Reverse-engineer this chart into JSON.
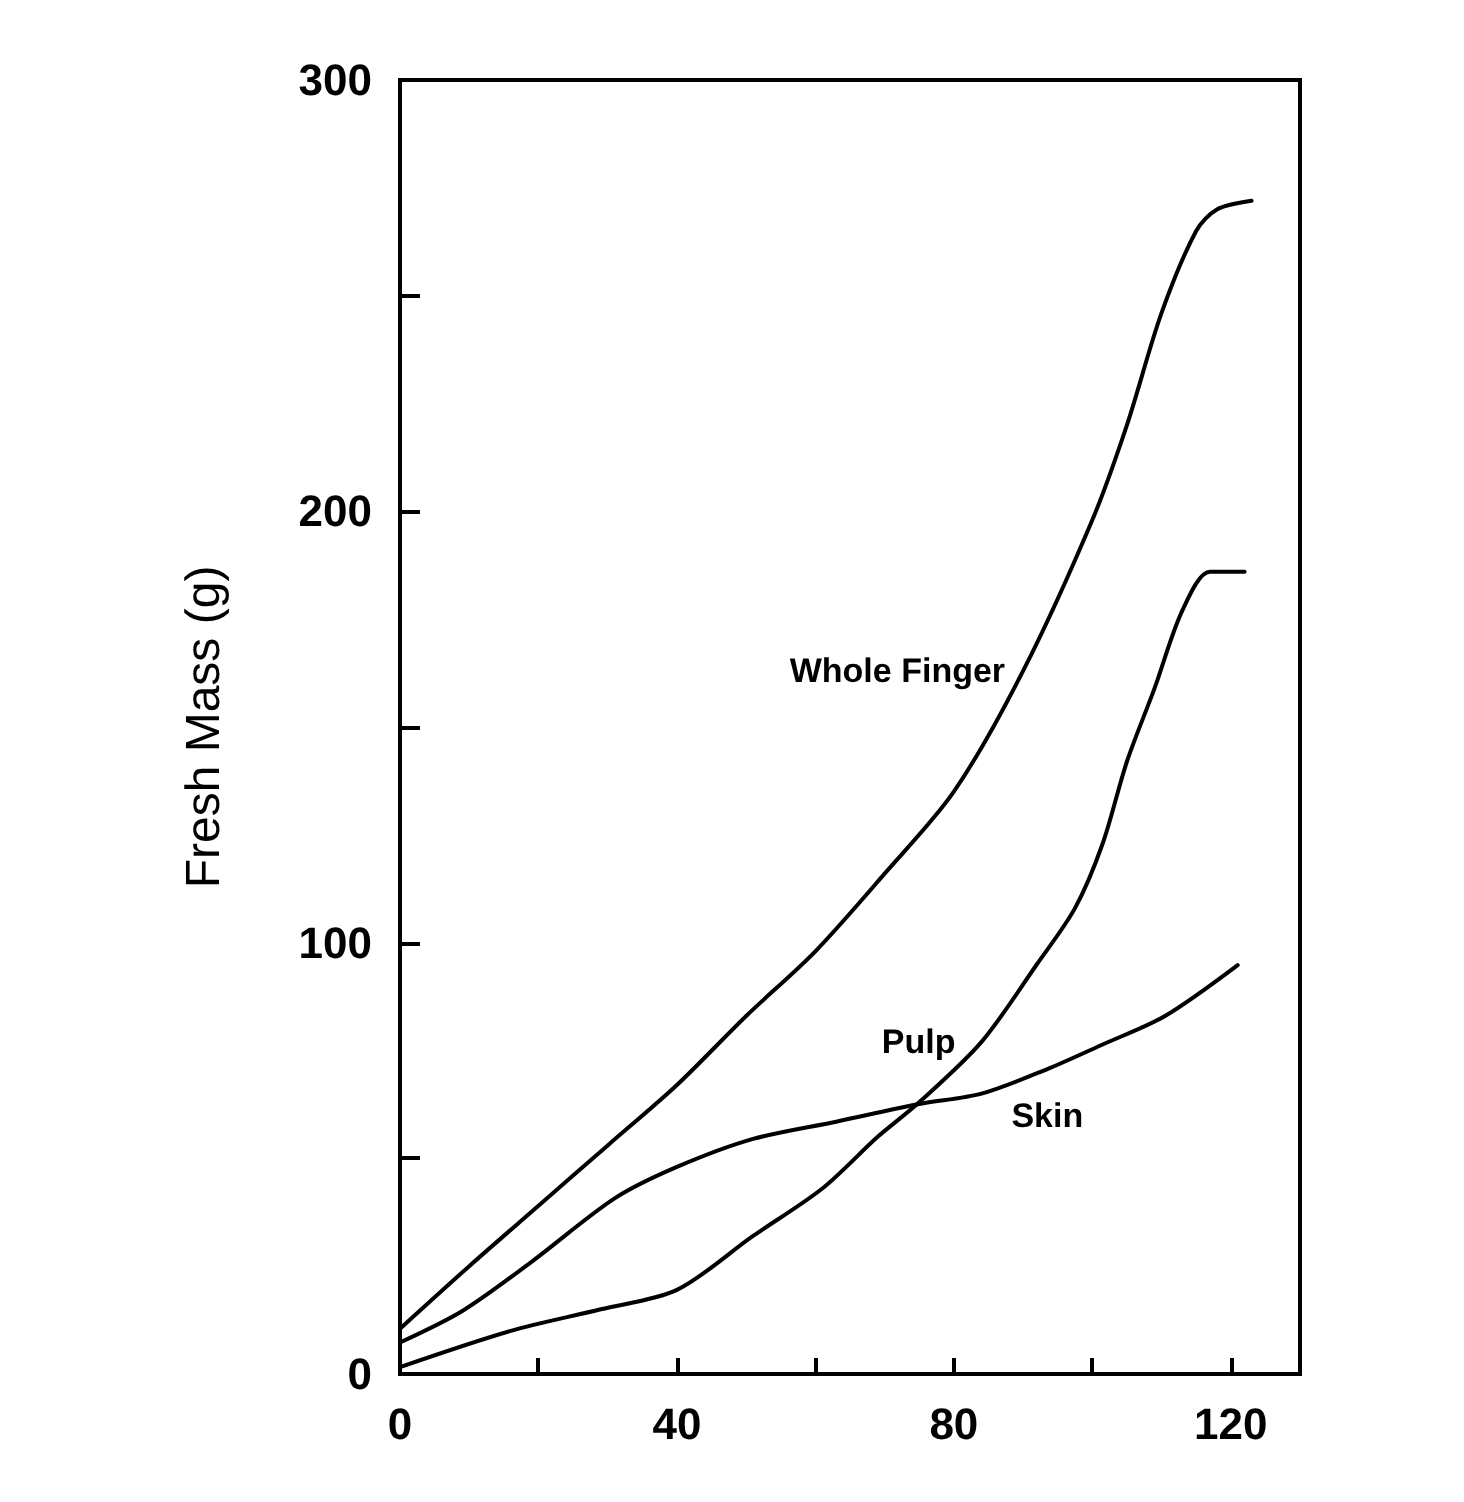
{
  "chart_data": {
    "type": "line",
    "ylabel": "Fresh Mass (g)",
    "xlim": [
      0,
      130
    ],
    "xticks": [
      0,
      {
        "value": 20,
        "label": null
      },
      40,
      {
        "value": 60,
        "label": null
      },
      80,
      {
        "value": 100,
        "label": null
      },
      120
    ],
    "ylim": [
      0,
      300
    ],
    "yticks": [
      0,
      {
        "value": 50,
        "label": null
      },
      100,
      {
        "value": 150,
        "label": null
      },
      200,
      {
        "value": 250,
        "label": null
      },
      300
    ],
    "grid": false,
    "legend": false,
    "marker": "none",
    "line_style": "solid",
    "series": [
      {
        "name": "Whole Finger",
        "color": "#000000",
        "x": [
          0,
          10,
          20,
          30,
          40,
          50,
          60,
          70,
          80,
          90,
          100,
          105,
          110,
          115,
          118,
          123
        ],
        "values": [
          10.5,
          25,
          39,
          53,
          67,
          83,
          98,
          116,
          135,
          163,
          198,
          220,
          246,
          265,
          270,
          272
        ]
      },
      {
        "name": "Pulp",
        "color": "#000000",
        "x": [
          0,
          16,
          29,
          40,
          51,
          61,
          69,
          75,
          84,
          92,
          97.5,
          101.5,
          105,
          109,
          113,
          117,
          122
        ],
        "values": [
          1.6,
          10,
          15,
          19.5,
          32,
          43,
          55,
          63,
          77,
          95,
          108,
          123,
          142,
          159,
          177,
          186,
          186
        ]
      },
      {
        "name": "Skin",
        "color": "#000000",
        "x": [
          0,
          9,
          19,
          31,
          40,
          51,
          63,
          75,
          84,
          93.5,
          101.5,
          110.5,
          121
        ],
        "values": [
          7.3,
          14.6,
          26,
          40.7,
          48,
          54.5,
          58.5,
          62.6,
          65,
          70.7,
          76.4,
          83,
          94.8
        ]
      }
    ]
  }
}
